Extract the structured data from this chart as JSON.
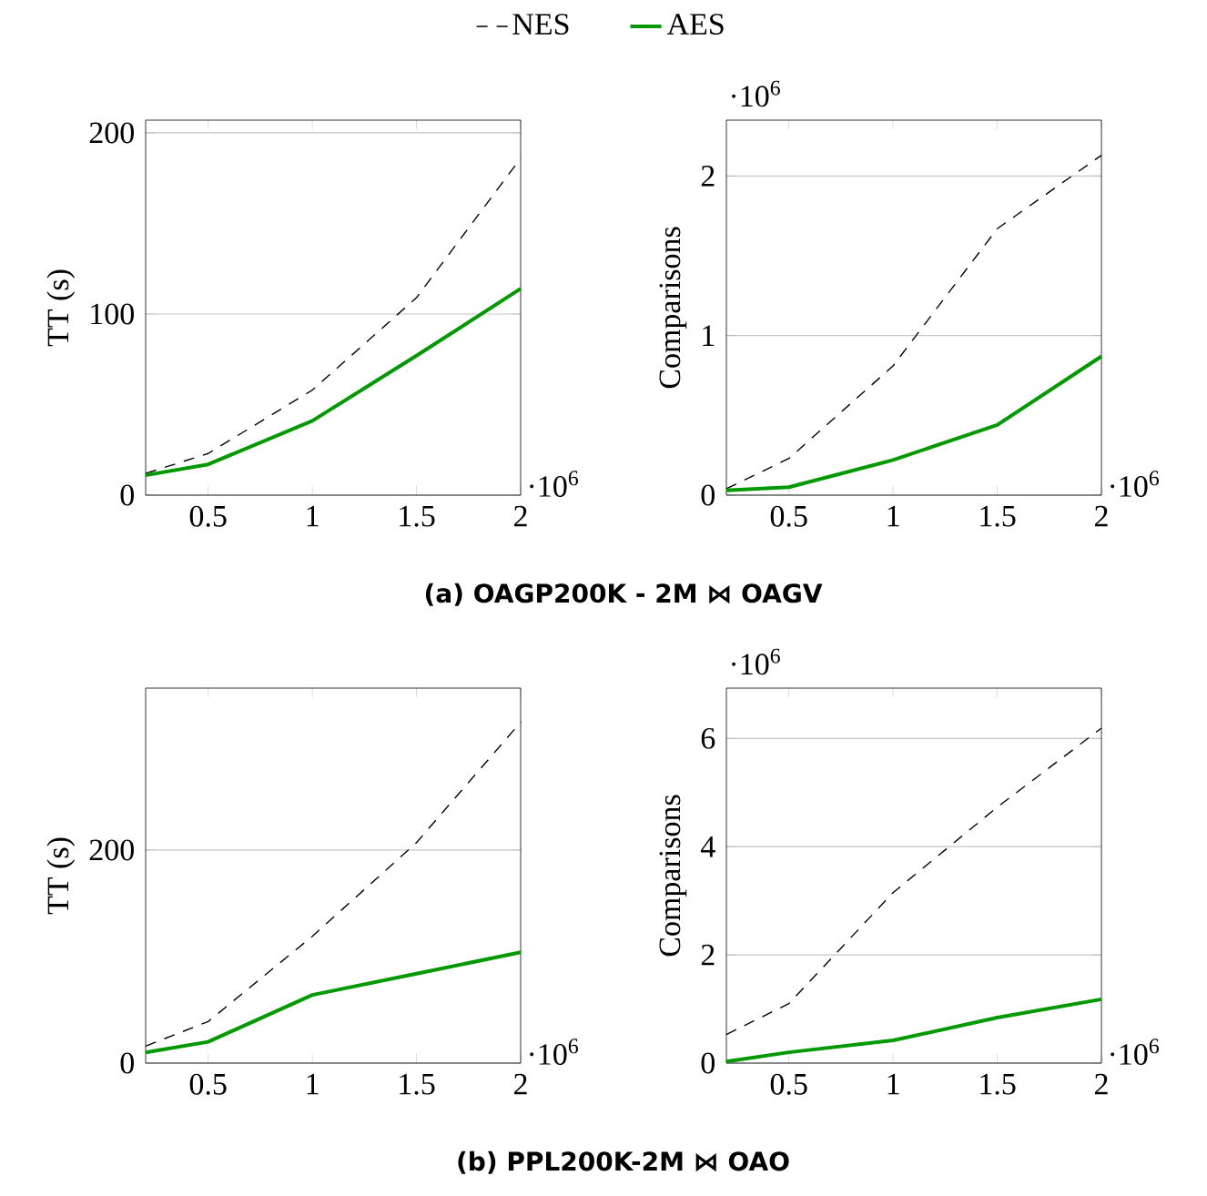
{
  "chart_data": [
    {
      "type": "line",
      "ylabel": "TT (s)",
      "x": [
        0.2,
        0.5,
        1,
        1.5,
        2
      ],
      "xlim": [
        0.2,
        2
      ],
      "xticks": [
        0.5,
        1,
        1.5,
        2
      ],
      "ylim": [
        0,
        207
      ],
      "yticks": [
        0,
        100,
        200
      ],
      "grid": "y",
      "legend": "top",
      "annotations": [
        "·10$^{6}$",
        "(a) OAGP200K - 2M ⋈ OAGV"
      ],
      "series": [
        {
          "name": "NES",
          "color": "#000000",
          "line_style": "dashed",
          "values": [
            12,
            23,
            58,
            109,
            186
          ]
        },
        {
          "name": "AES",
          "color": "#009900",
          "line_style": "solid",
          "values": [
            11,
            17,
            41,
            77,
            114
          ]
        }
      ]
    },
    {
      "type": "line",
      "ylabel": "Comparisons",
      "x": [
        0.2,
        0.5,
        1,
        1.5,
        2
      ],
      "xlim": [
        0.2,
        2
      ],
      "xticks": [
        0.5,
        1,
        1.5,
        2
      ],
      "ylim": [
        0,
        2.35
      ],
      "yticks": [
        0,
        1,
        2
      ],
      "grid": "y",
      "annotations": [
        "·10$^{6}$",
        "·10$^{6}$"
      ],
      "series": [
        {
          "color": "#000000",
          "line_style": "dashed",
          "values": [
            0.04,
            0.23,
            0.81,
            1.67,
            2.13
          ]
        },
        {
          "color": "#009900",
          "line_style": "solid",
          "values": [
            0.03,
            0.05,
            0.22,
            0.44,
            0.87
          ]
        }
      ]
    },
    {
      "type": "line",
      "ylabel": "TT (s)",
      "x": [
        0.2,
        0.5,
        1,
        1.5,
        2
      ],
      "xlim": [
        0.2,
        2
      ],
      "xticks": [
        0.5,
        1,
        1.5,
        2
      ],
      "ylim": [
        0,
        352
      ],
      "yticks": [
        0,
        200
      ],
      "grid": "y",
      "annotations": [
        "·10$^{6}$",
        "(b) PPL200K-2M ⋈ OAO"
      ],
      "series": [
        {
          "color": "#000000",
          "line_style": "dashed",
          "values": [
            16,
            39,
            119,
            207,
            320
          ]
        },
        {
          "color": "#009900",
          "line_style": "solid",
          "values": [
            10,
            20,
            64,
            84,
            104
          ]
        }
      ]
    },
    {
      "type": "line",
      "ylabel": "Comparisons",
      "x": [
        0.2,
        0.5,
        1,
        1.5,
        2
      ],
      "xlim": [
        0.2,
        2
      ],
      "xticks": [
        0.5,
        1,
        1.5,
        2
      ],
      "ylim": [
        0,
        6.93
      ],
      "yticks": [
        0,
        2,
        4,
        6
      ],
      "grid": "y",
      "annotations": [
        "·10$^{6}$",
        "·10$^{6}$"
      ],
      "series": [
        {
          "color": "#000000",
          "line_style": "dashed",
          "values": [
            0.53,
            1.1,
            3.15,
            4.73,
            6.19
          ]
        },
        {
          "color": "#009900",
          "line_style": "solid",
          "values": [
            0.03,
            0.2,
            0.42,
            0.84,
            1.18
          ]
        }
      ]
    }
  ]
}
